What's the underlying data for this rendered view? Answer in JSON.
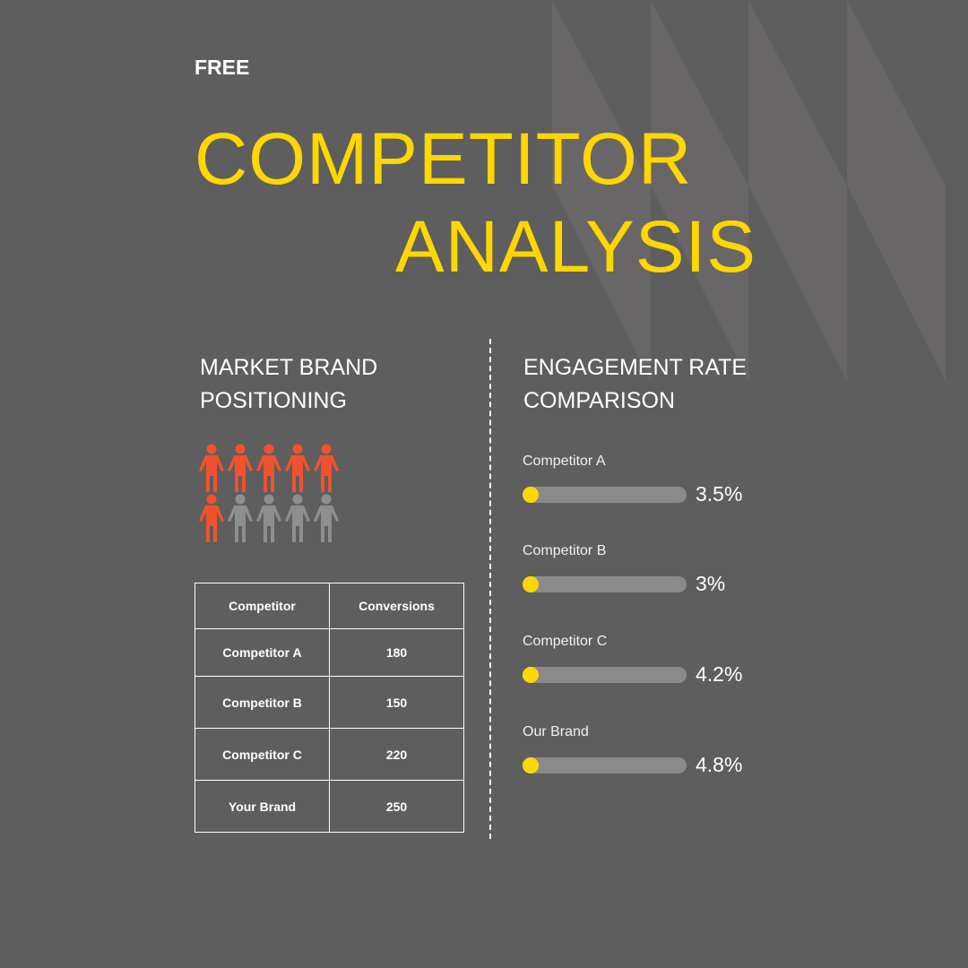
{
  "colors": {
    "background": "#5e5e5e",
    "pattern": "#686667",
    "accent": "#ffd700",
    "highlight_person": "#f0522e",
    "muted_person": "#8e8e8e"
  },
  "tag": "FREE",
  "title": {
    "line1": "COMPETITOR",
    "line2": "ANALYSIS"
  },
  "left": {
    "heading": {
      "line1": "MARKET BRAND",
      "line2": "POSITIONING"
    },
    "people": {
      "total": 10,
      "highlighted": 6
    },
    "table": {
      "headers": [
        "Competitor",
        "Conversions"
      ],
      "rows": [
        [
          "Competitor A",
          "180"
        ],
        [
          "Competitor B",
          "150"
        ],
        [
          "Competitor C",
          "220"
        ],
        [
          "Your Brand",
          "250"
        ]
      ]
    }
  },
  "right": {
    "heading": {
      "line1": "ENGAGEMENT RATE",
      "line2": "COMPARISON"
    },
    "items": [
      {
        "label": "Competitor A",
        "value": "3.5%"
      },
      {
        "label": "Competitor B",
        "value": "3%"
      },
      {
        "label": "Competitor C",
        "value": "4.2%"
      },
      {
        "label": "Our Brand",
        "value": "4.8%"
      }
    ]
  }
}
